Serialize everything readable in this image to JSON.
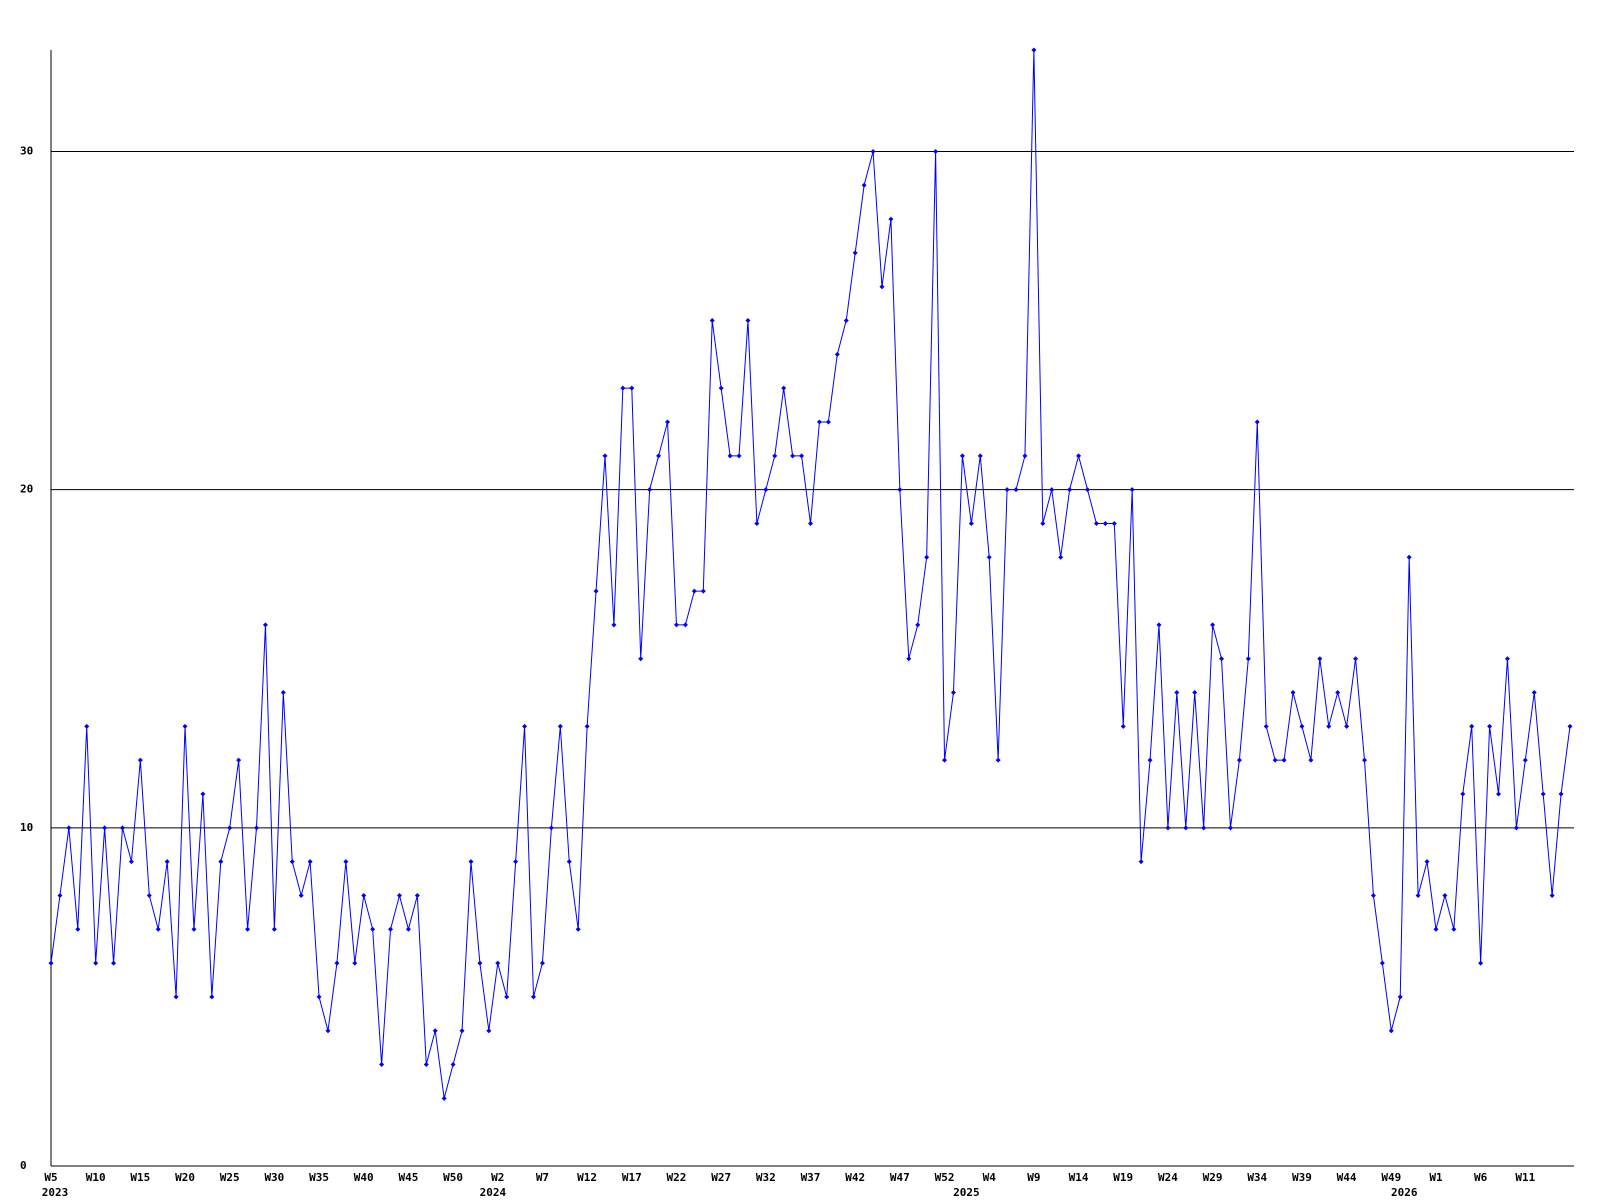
{
  "chart_data": {
    "type": "line",
    "categories": [
      "W5",
      null,
      null,
      null,
      null,
      "W10",
      null,
      null,
      null,
      null,
      "W15",
      null,
      null,
      null,
      null,
      "W20",
      null,
      null,
      null,
      null,
      "W25",
      null,
      null,
      null,
      null,
      "W30",
      null,
      null,
      null,
      null,
      "W35",
      null,
      null,
      null,
      null,
      "W40",
      null,
      null,
      null,
      null,
      "W45",
      null,
      null,
      null,
      null,
      "W50",
      null,
      null,
      null,
      null,
      "W2",
      null,
      null,
      null,
      null,
      "W7",
      null,
      null,
      null,
      null,
      "W12",
      null,
      null,
      null,
      null,
      "W17",
      null,
      null,
      null,
      null,
      "W22",
      null,
      null,
      null,
      null,
      "W27",
      null,
      null,
      null,
      null,
      "W32",
      null,
      null,
      null,
      null,
      "W37",
      null,
      null,
      null,
      null,
      "W42",
      null,
      null,
      null,
      null,
      "W47",
      null,
      null,
      null,
      null,
      "W52",
      null,
      null,
      null,
      null,
      "W4",
      null,
      null,
      null,
      null,
      "W9",
      null,
      null,
      null,
      null,
      "W14",
      null,
      null,
      null,
      null,
      "W19",
      null,
      null,
      null,
      null,
      "W24",
      null,
      null,
      null,
      null,
      "W29",
      null,
      null,
      null,
      null,
      "W34",
      null,
      null,
      null,
      null,
      "W39",
      null,
      null,
      null,
      null,
      "W44",
      null,
      null,
      null,
      null,
      "W49",
      null,
      null,
      null,
      null,
      "W1",
      null,
      null,
      null,
      null,
      "W6",
      null,
      null,
      null,
      null,
      "W11",
      null,
      null,
      null,
      null,
      null
    ],
    "years": [
      "2023",
      null,
      null,
      null,
      null,
      null,
      null,
      null,
      null,
      null,
      null,
      null,
      null,
      null,
      null,
      null,
      null,
      null,
      null,
      null,
      null,
      null,
      null,
      null,
      null,
      null,
      null,
      null,
      null,
      null,
      null,
      null,
      null,
      null,
      null,
      null,
      null,
      null,
      null,
      null,
      null,
      null,
      null,
      null,
      null,
      null,
      null,
      null,
      null,
      "2024",
      null,
      null,
      null,
      null,
      null,
      null,
      null,
      null,
      null,
      null,
      null,
      null,
      null,
      null,
      null,
      null,
      null,
      null,
      null,
      null,
      null,
      null,
      null,
      null,
      null,
      null,
      null,
      null,
      null,
      null,
      null,
      null,
      null,
      null,
      null,
      null,
      null,
      null,
      null,
      null,
      null,
      null,
      null,
      null,
      null,
      null,
      null,
      null,
      null,
      null,
      null,
      null,
      "2025",
      null,
      null,
      null,
      null,
      null,
      null,
      null,
      null,
      null,
      null,
      null,
      null,
      null,
      null,
      null,
      null,
      null,
      null,
      null,
      null,
      null,
      null,
      null,
      null,
      null,
      null,
      null,
      null,
      null,
      null,
      null,
      null,
      null,
      null,
      null,
      null,
      null,
      null,
      null,
      null,
      null,
      null,
      null,
      null,
      null,
      null,
      null,
      null,
      "2026",
      null,
      null,
      null,
      null,
      null,
      null,
      null,
      null,
      null,
      null,
      null,
      null,
      null,
      null,
      null
    ],
    "values": [
      6,
      8,
      10,
      7,
      13,
      6,
      10,
      6,
      10,
      9,
      12,
      8,
      7,
      9,
      5,
      13,
      7,
      11,
      5,
      9,
      10,
      12,
      7,
      10,
      16,
      7,
      14,
      9,
      8,
      9,
      5,
      4,
      6,
      9,
      6,
      8,
      7,
      3,
      7,
      8,
      7,
      8,
      3,
      4,
      2,
      3,
      4,
      9,
      6,
      4,
      6,
      5,
      9,
      13,
      5,
      6,
      10,
      13,
      9,
      7,
      13,
      17,
      21,
      16,
      23,
      23,
      15,
      20,
      21,
      22,
      16,
      16,
      17,
      17,
      25,
      23,
      21,
      21,
      25,
      19,
      20,
      21,
      23,
      21,
      21,
      19,
      22,
      22,
      24,
      25,
      27,
      29,
      30,
      26,
      28,
      20,
      15,
      16,
      18,
      30,
      12,
      14,
      21,
      19,
      21,
      18,
      12,
      20,
      20,
      21,
      33,
      19,
      20,
      18,
      20,
      21,
      20,
      19,
      19,
      19,
      13,
      20,
      9,
      12,
      16,
      10,
      14,
      10,
      14,
      10,
      16,
      15,
      10,
      12,
      15,
      22,
      13,
      12,
      12,
      14,
      13,
      12,
      15,
      13,
      14,
      13,
      15,
      12,
      8,
      6,
      4,
      5,
      18,
      8,
      9,
      7,
      8,
      7,
      11,
      13,
      6,
      13,
      11,
      15,
      10,
      12,
      14,
      11,
      8,
      11,
      13
    ],
    "color": "#0000ff",
    "ylim": [
      0,
      33
    ],
    "yticks": [
      0,
      10,
      20,
      30
    ],
    "grid": true
  }
}
